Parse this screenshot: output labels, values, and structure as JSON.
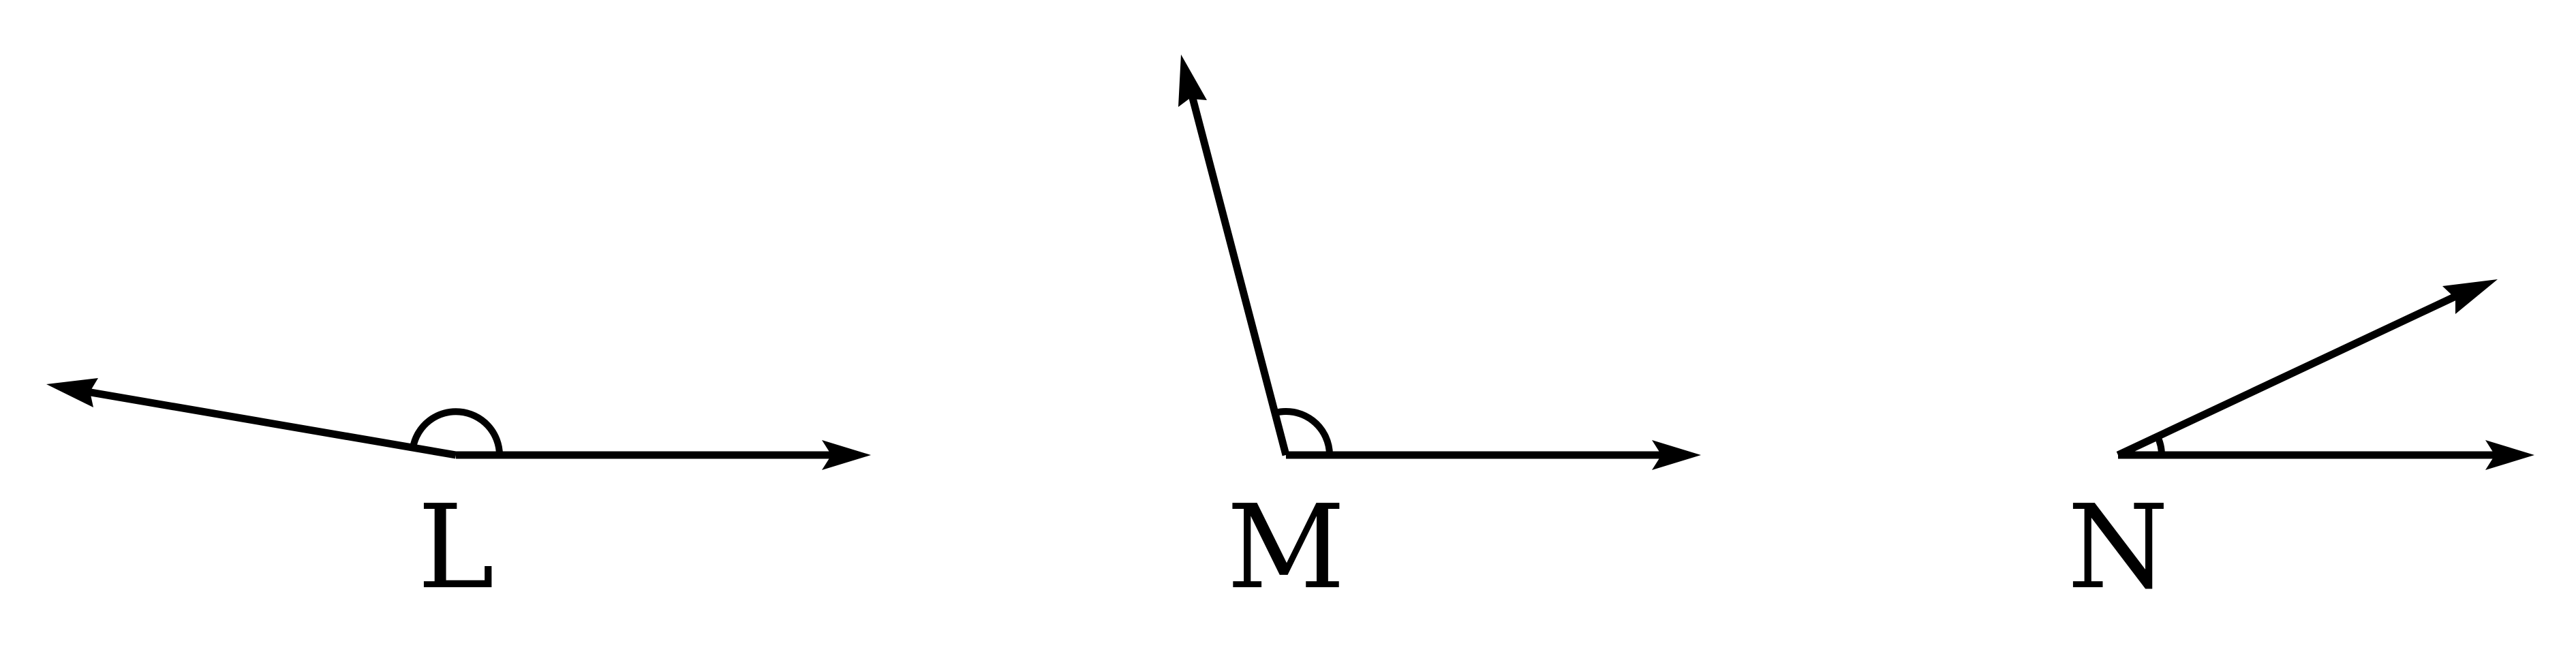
{
  "figure": {
    "stroke_color": "#000000",
    "background": "#ffffff"
  },
  "angles": [
    {
      "label": "L",
      "kind": "obtuse"
    },
    {
      "label": "M",
      "kind": "obtuse"
    },
    {
      "label": "N",
      "kind": "acute"
    }
  ]
}
